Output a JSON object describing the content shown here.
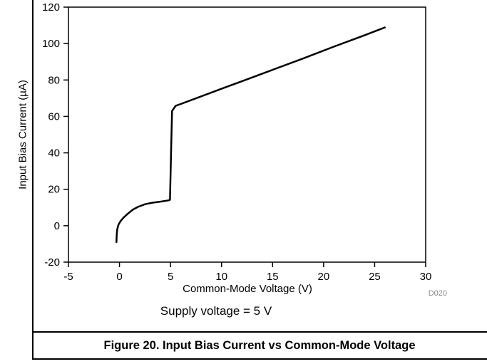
{
  "figure": {
    "caption": "Figure 20. Input Bias Current vs Common-Mode Voltage"
  },
  "chart_data": {
    "type": "line",
    "title": "",
    "xlabel": "Common-Mode Voltage (V)",
    "ylabel": "Input Bias Current (µA)",
    "condition": "Supply voltage = 5 V",
    "plot_id": "D020",
    "xlim": [
      -5,
      30
    ],
    "ylim": [
      -20,
      120
    ],
    "xticks": [
      -5,
      0,
      5,
      10,
      15,
      20,
      25,
      30
    ],
    "yticks": [
      -20,
      0,
      20,
      40,
      60,
      80,
      100,
      120
    ],
    "grid": false,
    "legend": "none",
    "line_color": "#000000",
    "series": [
      {
        "name": "input-bias-current",
        "points": [
          [
            -0.3,
            -9.0
          ],
          [
            -0.27,
            -5.0
          ],
          [
            -0.22,
            -2.0
          ],
          [
            -0.1,
            0.5
          ],
          [
            0.1,
            2.5
          ],
          [
            0.4,
            4.5
          ],
          [
            0.8,
            6.5
          ],
          [
            1.3,
            8.8
          ],
          [
            1.8,
            10.3
          ],
          [
            2.5,
            11.8
          ],
          [
            3.2,
            12.6
          ],
          [
            4.0,
            13.2
          ],
          [
            4.8,
            13.9
          ],
          [
            4.95,
            14.2
          ],
          [
            5.05,
            40.0
          ],
          [
            5.15,
            63.0
          ],
          [
            5.5,
            65.8
          ],
          [
            6.0,
            66.8
          ],
          [
            8.0,
            71.0
          ],
          [
            10.0,
            75.2
          ],
          [
            12.0,
            79.3
          ],
          [
            15.0,
            85.6
          ],
          [
            18.0,
            91.8
          ],
          [
            21.0,
            98.3
          ],
          [
            24.0,
            104.5
          ],
          [
            26.0,
            108.8
          ]
        ]
      }
    ]
  }
}
